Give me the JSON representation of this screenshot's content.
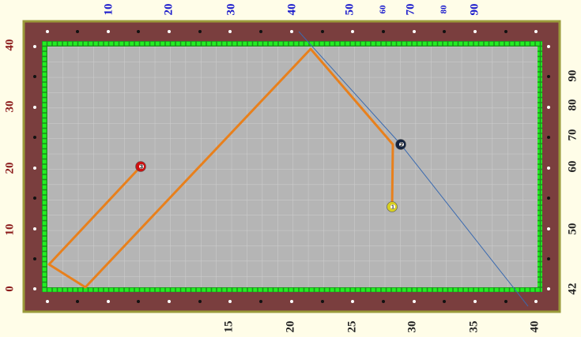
{
  "top_labels": [
    "10",
    "20",
    "30",
    "40",
    "50",
    "60",
    "70",
    "80",
    "90"
  ],
  "left_labels": [
    "40",
    "30",
    "20",
    "10",
    "0"
  ],
  "right_labels": [
    "90",
    "80",
    "70",
    "60",
    "50",
    "42"
  ],
  "bottom_labels": [
    "15",
    "20",
    "25",
    "30",
    "35",
    "40"
  ],
  "balls": [
    {
      "label": "3"
    },
    {
      "label": "2"
    },
    {
      "label": "1"
    }
  ]
}
